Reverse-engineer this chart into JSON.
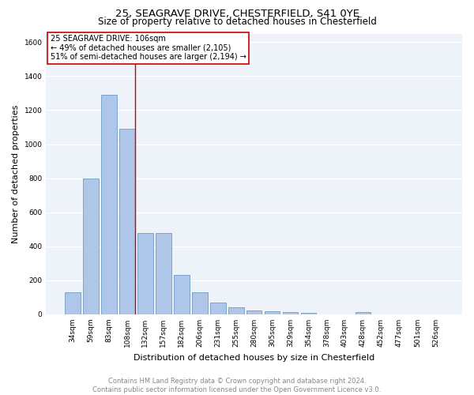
{
  "title1": "25, SEAGRAVE DRIVE, CHESTERFIELD, S41 0YE",
  "title2": "Size of property relative to detached houses in Chesterfield",
  "xlabel": "Distribution of detached houses by size in Chesterfield",
  "ylabel": "Number of detached properties",
  "categories": [
    "34sqm",
    "59sqm",
    "83sqm",
    "108sqm",
    "132sqm",
    "157sqm",
    "182sqm",
    "206sqm",
    "231sqm",
    "255sqm",
    "280sqm",
    "305sqm",
    "329sqm",
    "354sqm",
    "378sqm",
    "403sqm",
    "428sqm",
    "452sqm",
    "477sqm",
    "501sqm",
    "526sqm"
  ],
  "values": [
    130,
    800,
    1290,
    1090,
    480,
    480,
    230,
    130,
    70,
    40,
    25,
    20,
    15,
    10,
    0,
    0,
    15,
    0,
    0,
    0,
    0
  ],
  "bar_color": "#aec6e8",
  "bar_edge_color": "#5a8fc0",
  "vline_label": "25 SEAGRAVE DRIVE: 106sqm",
  "annotation_line1": "← 49% of detached houses are smaller (2,105)",
  "annotation_line2": "51% of semi-detached houses are larger (2,194) →",
  "annotation_box_color": "#ffffff",
  "annotation_box_edge": "#cc0000",
  "ylim": [
    0,
    1650
  ],
  "yticks": [
    0,
    200,
    400,
    600,
    800,
    1000,
    1200,
    1400,
    1600
  ],
  "footer1": "Contains HM Land Registry data © Crown copyright and database right 2024.",
  "footer2": "Contains public sector information licensed under the Open Government Licence v3.0.",
  "bg_color": "#eef2f9",
  "grid_color": "#ffffff",
  "title_fontsize": 9.5,
  "subtitle_fontsize": 8.5,
  "axis_label_fontsize": 8,
  "tick_fontsize": 6.5,
  "footer_fontsize": 6,
  "annot_fontsize": 7
}
